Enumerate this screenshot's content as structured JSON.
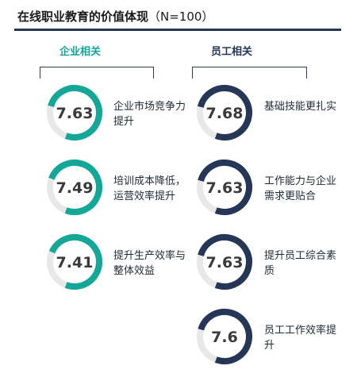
{
  "header": {
    "title": "在线职业教育的价值体现",
    "subtitle": "（N=100）"
  },
  "colors": {
    "teal": "#12a797",
    "navy": "#253656",
    "track": "#e8e8e8"
  },
  "chart_data": [
    {
      "type": "gauge",
      "group": "企业相关",
      "scale_max": 10,
      "color": "#12a797",
      "items": [
        {
          "label": "企业市场竞争力提升",
          "value": 7.63,
          "display": "7.63"
        },
        {
          "label": "培训成本降低，运营效率提升",
          "value": 7.49,
          "display": "7.49"
        },
        {
          "label": "提升生产效率与整体效益",
          "value": 7.41,
          "display": "7.41"
        }
      ]
    },
    {
      "type": "gauge",
      "group": "员工相关",
      "scale_max": 10,
      "color": "#253656",
      "items": [
        {
          "label": "基础技能更扎实",
          "value": 7.68,
          "display": "7.68"
        },
        {
          "label": "工作能力与企业需求更贴合",
          "value": 7.63,
          "display": "7.63"
        },
        {
          "label": "提升员工综合素质",
          "value": 7.63,
          "display": "7.63"
        },
        {
          "label": "员工工作效率提升",
          "value": 7.6,
          "display": "7.6"
        }
      ]
    }
  ]
}
